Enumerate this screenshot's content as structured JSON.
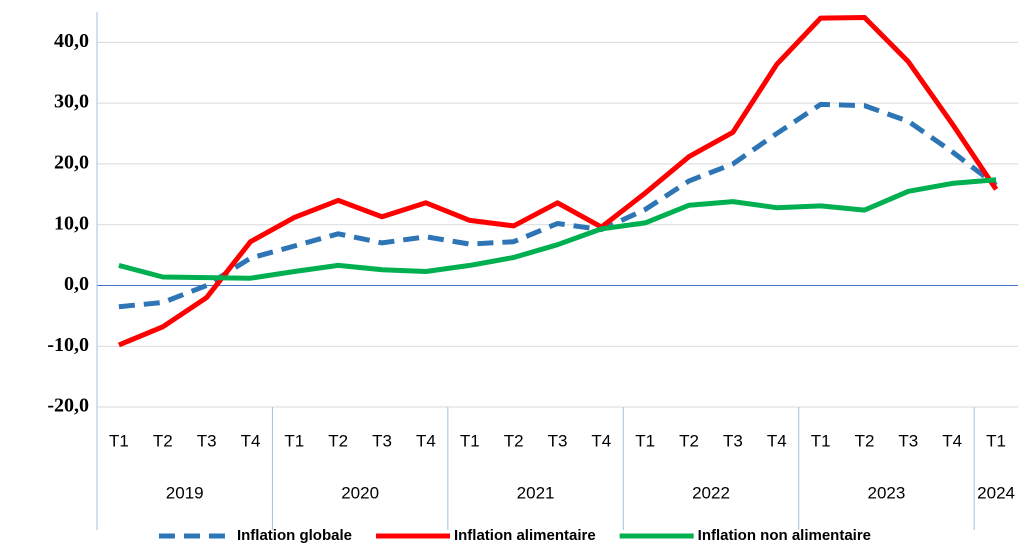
{
  "chart_data": {
    "type": "line",
    "categories": [
      "T1",
      "T2",
      "T3",
      "T4",
      "T1",
      "T2",
      "T3",
      "T4",
      "T1",
      "T2",
      "T3",
      "T4",
      "T1",
      "T2",
      "T3",
      "T4",
      "T1",
      "T2",
      "T3",
      "T4",
      "T1"
    ],
    "x_groups": [
      "2019",
      "2020",
      "2021",
      "2022",
      "2023",
      "2024"
    ],
    "ylim": [
      -20,
      45
    ],
    "yticks": [
      {
        "value": -20,
        "label": "-20,0"
      },
      {
        "value": -10,
        "label": "-10,0"
      },
      {
        "value": 0,
        "label": "0,0"
      },
      {
        "value": 10,
        "label": "10,0"
      },
      {
        "value": 20,
        "label": "20,0"
      },
      {
        "value": 30,
        "label": "30,0"
      },
      {
        "value": 40,
        "label": "40,0"
      }
    ],
    "grid": true,
    "legend": "bottom",
    "series": [
      {
        "name": "Inflation globale",
        "color": "#2e75b6",
        "style": "dashed",
        "values": [
          -3.5,
          -2.8,
          0,
          4.5,
          6.5,
          8.5,
          7,
          8,
          6.8,
          7.2,
          10.2,
          9.2,
          12.5,
          17.2,
          20,
          25,
          29.8,
          29.6,
          27,
          22,
          16.5
        ]
      },
      {
        "name": "Inflation alimentaire",
        "color": "#ff0000",
        "style": "solid",
        "values": [
          -9.8,
          -6.8,
          -2,
          7.2,
          11.2,
          14,
          11.3,
          13.6,
          10.7,
          9.8,
          13.6,
          9.6,
          15.2,
          21.2,
          25.2,
          36.4,
          44,
          44.1,
          36.8,
          26.6,
          15.8
        ]
      },
      {
        "name": "Inflation non alimentaire",
        "color": "#00b050",
        "style": "solid",
        "values": [
          3.3,
          1.4,
          1.3,
          1.2,
          2.3,
          3.3,
          2.6,
          2.3,
          3.3,
          4.6,
          6.7,
          9.3,
          10.3,
          13.2,
          13.8,
          12.8,
          13.1,
          12.4,
          15.5,
          16.8,
          17.4
        ]
      }
    ]
  }
}
